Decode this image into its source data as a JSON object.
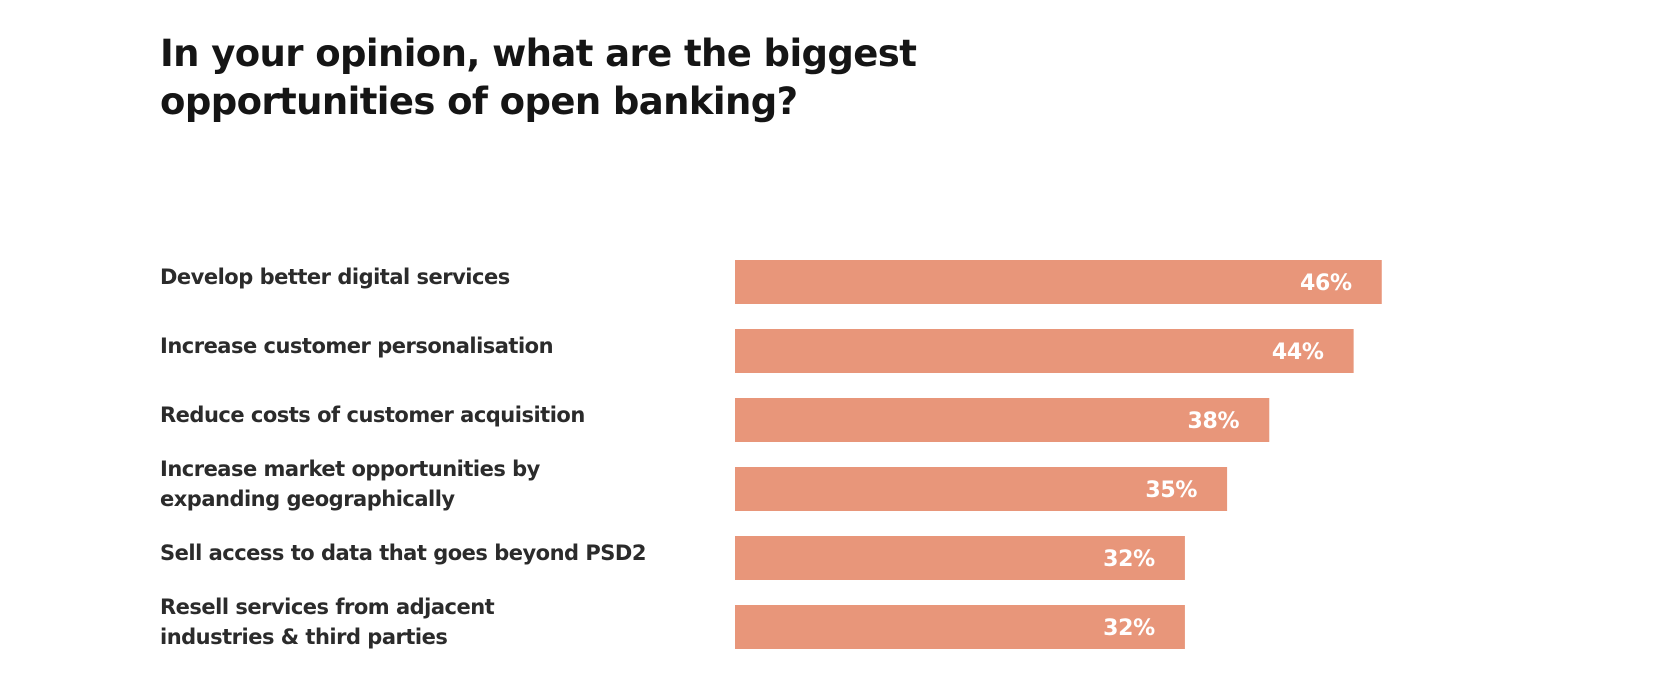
{
  "chart_data": {
    "type": "bar",
    "orientation": "horizontal",
    "title": "In your opinion, what are the biggest\nopportunities of open banking?",
    "categories": [
      "Develop better digital services",
      "Increase customer personalisation",
      "Reduce costs of customer acquisition",
      "Increase market opportunities by\nexpanding geographically",
      "Sell access to data that goes beyond PSD2",
      "Resell services from adjacent\nindustries & third parties"
    ],
    "values": [
      46,
      44,
      38,
      35,
      32,
      32
    ],
    "value_labels": [
      "46%",
      "44%",
      "38%",
      "35%",
      "32%",
      "32%"
    ],
    "unit": "%",
    "bar_color": "#e8967a",
    "value_label_color": "#ffffff",
    "xlim": [
      0,
      100
    ],
    "grid": false,
    "legend": "none"
  }
}
